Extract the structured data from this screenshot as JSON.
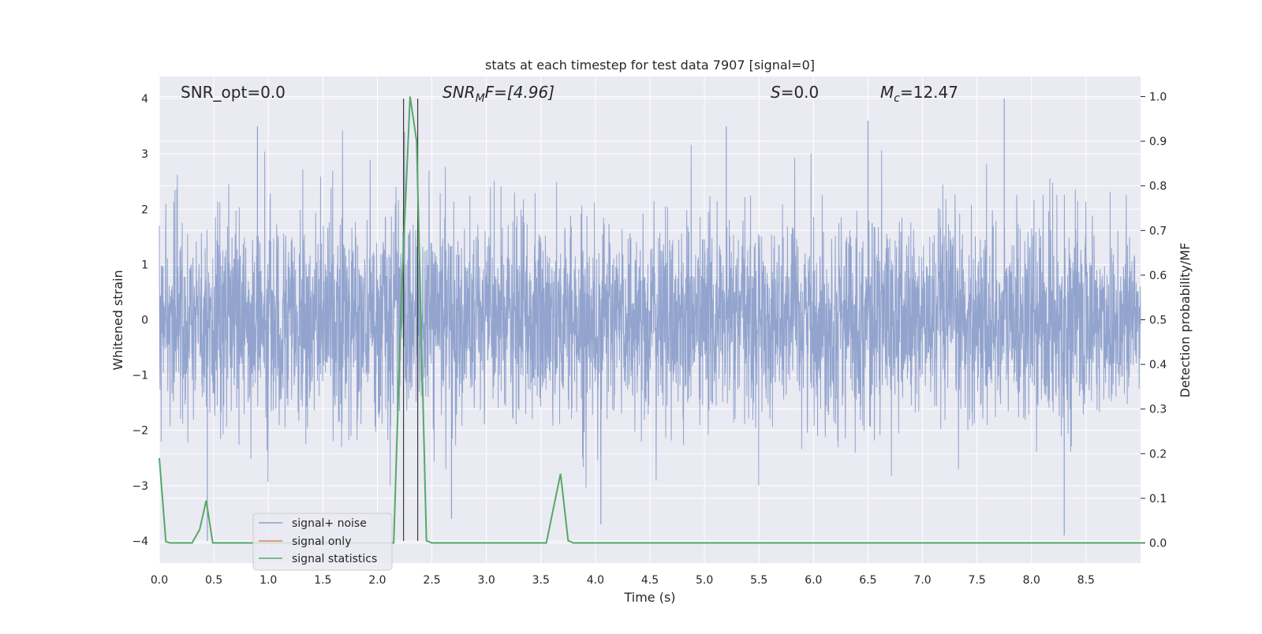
{
  "chart_data": {
    "type": "line",
    "title": "stats at each timestep for test data 7907 [signal=0]",
    "xlabel": "Time (s)",
    "ylabel_left": "Whitened strain",
    "ylabel_right": "Detection probability/MF",
    "xlim": [
      0.0,
      9.0
    ],
    "ylim_left": [
      -4.4,
      4.4
    ],
    "ylim_right": [
      -0.045,
      1.045
    ],
    "grid": true,
    "legend_position": "lower-left",
    "x_ticks": [
      "0.0",
      "0.5",
      "1.0",
      "1.5",
      "2.0",
      "2.5",
      "3.0",
      "3.5",
      "4.0",
      "4.5",
      "5.0",
      "5.5",
      "6.0",
      "6.5",
      "7.0",
      "7.5",
      "8.0",
      "8.5"
    ],
    "y_left_ticks": [
      "4",
      "3",
      "2",
      "1",
      "0",
      "−1",
      "−2",
      "−3",
      "−4"
    ],
    "y_right_ticks": [
      "1.0",
      "0.9",
      "0.8",
      "0.7",
      "0.6",
      "0.5",
      "0.4",
      "0.3",
      "0.2",
      "0.1",
      "0.0"
    ],
    "annotations": {
      "snr_opt": "SNR_opt=0.0",
      "snr_mf_main": "SNR",
      "snr_mf_sub": "M",
      "snr_mf_tail": "F=[4.96]",
      "s_main": "S",
      "s_tail": "=0.0",
      "mc_main": "M",
      "mc_sub": "c",
      "mc_tail": "=12.47"
    },
    "vertical_markers_x": [
      2.24,
      2.37
    ],
    "series": [
      {
        "name": "signal+ noise",
        "color": "#8da0cb",
        "axis": "left",
        "sample_rate_hz": 2048,
        "duration_s": 9.0,
        "envelope_abs_typical": 2.0,
        "notable_peaks": [
          {
            "x": 0.9,
            "y": 3.5
          },
          {
            "x": 2.25,
            "y": 3.4
          },
          {
            "x": 5.2,
            "y": 3.5
          },
          {
            "x": 6.5,
            "y": 3.6
          },
          {
            "x": 7.75,
            "y": 4.0
          },
          {
            "x": 0.44,
            "y": -4.0
          },
          {
            "x": 2.68,
            "y": -3.6
          },
          {
            "x": 4.05,
            "y": -3.7
          },
          {
            "x": 8.3,
            "y": -3.9
          }
        ]
      },
      {
        "name": "signal only",
        "color": "#dd8452",
        "axis": "left",
        "values": []
      },
      {
        "name": "signal statistics",
        "color": "#55a868",
        "axis": "right",
        "points": [
          [
            0.0,
            0.19
          ],
          [
            0.06,
            0.003
          ],
          [
            0.1,
            0.0
          ],
          [
            0.3,
            0.0
          ],
          [
            0.37,
            0.03
          ],
          [
            0.43,
            0.095
          ],
          [
            0.49,
            0.0
          ],
          [
            2.15,
            0.0
          ],
          [
            2.22,
            0.55
          ],
          [
            2.3,
            1.0
          ],
          [
            2.36,
            0.9
          ],
          [
            2.4,
            0.5
          ],
          [
            2.45,
            0.005
          ],
          [
            2.5,
            0.0
          ],
          [
            3.55,
            0.0
          ],
          [
            3.6,
            0.06
          ],
          [
            3.68,
            0.155
          ],
          [
            3.75,
            0.005
          ],
          [
            3.8,
            0.0
          ],
          [
            9.0,
            0.0
          ]
        ]
      }
    ]
  }
}
